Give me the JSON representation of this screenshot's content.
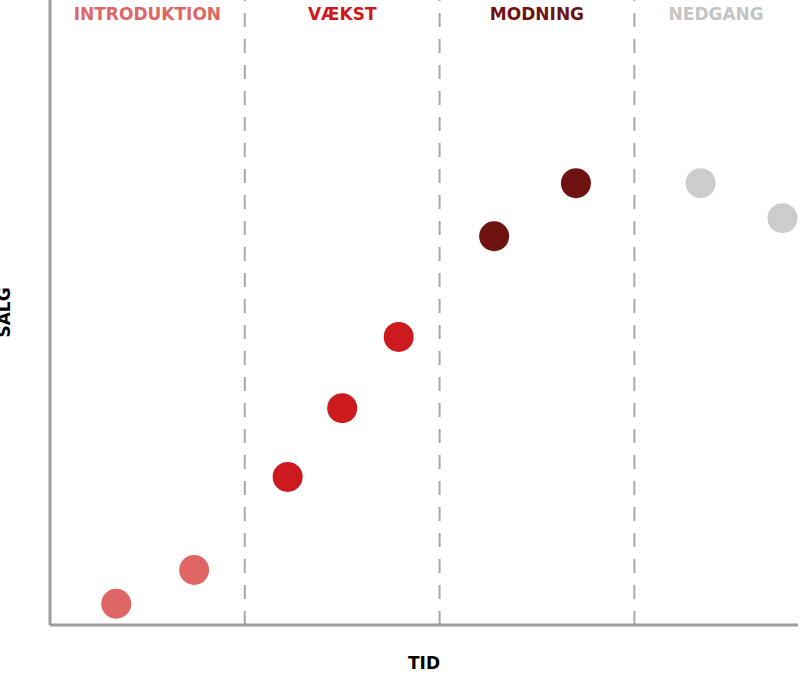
{
  "chart_data": {
    "type": "scatter",
    "x_label": "TID",
    "y_label": "SALG",
    "x": [
      0.34,
      0.74,
      1.22,
      1.5,
      1.79,
      2.28,
      2.7,
      3.34,
      3.76
    ],
    "values": [
      3.4,
      8.8,
      23.7,
      34.7,
      46.1,
      62.2,
      70.7,
      70.7,
      65.1
    ],
    "colors": [
      "#e06666",
      "#e06666",
      "#cc1a1e",
      "#cc1a1e",
      "#cc1a1e",
      "#6e1212",
      "#6e1212",
      "#cccccc",
      "#cccccc"
    ],
    "xlim": [
      0,
      3.84
    ],
    "ylim": [
      0,
      100
    ],
    "xticks": [],
    "yticks": [],
    "tick_labels": false,
    "grid": false,
    "phases": [
      {
        "label": "INTRODUKTION",
        "color": "#e06666",
        "start": 0,
        "end": 1
      },
      {
        "label": "VÆKST",
        "color": "#cc1a1e",
        "start": 1,
        "end": 2
      },
      {
        "label": "MODNING",
        "color": "#6e1212",
        "start": 2,
        "end": 3
      },
      {
        "label": "NEDGANG",
        "color": "#c4c4c4",
        "start": 3,
        "end": 3.84
      }
    ]
  }
}
